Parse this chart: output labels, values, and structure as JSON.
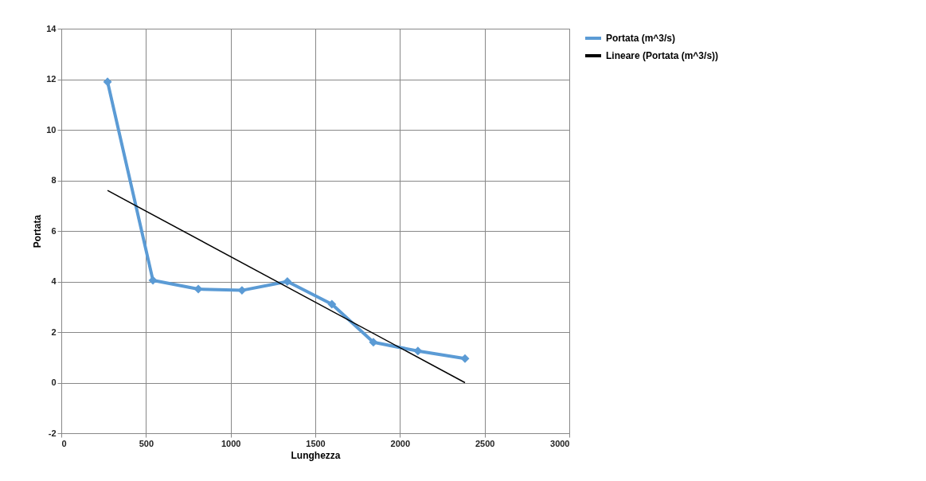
{
  "chart_data": {
    "type": "line",
    "xlabel": "Lunghezza",
    "ylabel": "Portata",
    "xlim": [
      0,
      3000
    ],
    "xticks": [
      0,
      500,
      1000,
      1500,
      2000,
      2500,
      3000
    ],
    "ylim": [
      -2,
      14
    ],
    "yticks": [
      -2,
      0,
      2,
      4,
      6,
      8,
      10,
      12,
      14
    ],
    "grid": true,
    "legend": "right",
    "marker": "diamond",
    "series": [
      {
        "name": "Portata (m^3/s)",
        "color": "#5b9bd5",
        "x": [
          273,
          541,
          809,
          1067,
          1335,
          1598,
          1843,
          2106,
          2384
        ],
        "values": [
          11.9,
          4.05,
          3.7,
          3.65,
          4.0,
          3.1,
          1.6,
          1.25,
          0.95
        ]
      },
      {
        "name": "Lineare (Portata (m^3/s))",
        "color": "#000000",
        "marker": "none",
        "x": [
          273,
          2384
        ],
        "values": [
          7.6,
          0.0
        ]
      }
    ]
  }
}
